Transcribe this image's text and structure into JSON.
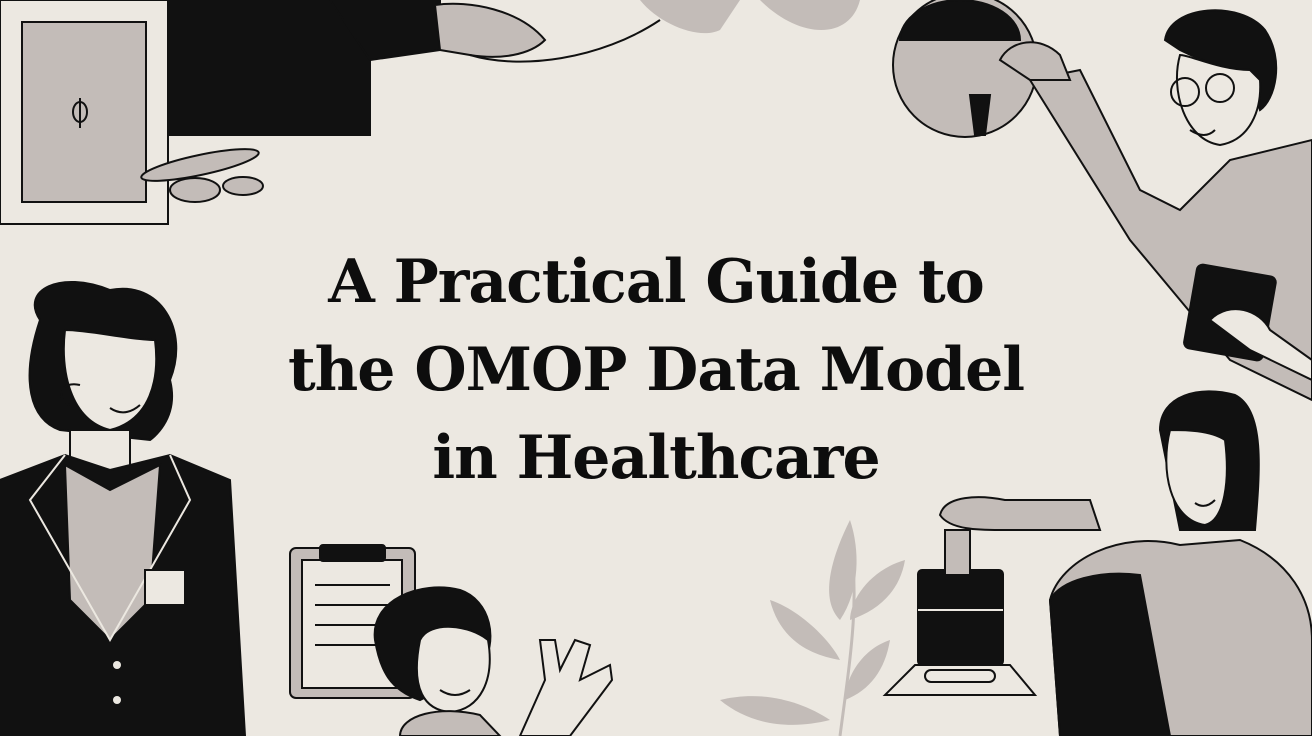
{
  "hero": {
    "title_lines": [
      "A Practical Guide to",
      "the OMOP Data Model",
      "in Healthcare"
    ]
  },
  "colors": {
    "background": "#ece8e1",
    "ink": "#0d0d0d",
    "grey": "#c3bcb8"
  }
}
